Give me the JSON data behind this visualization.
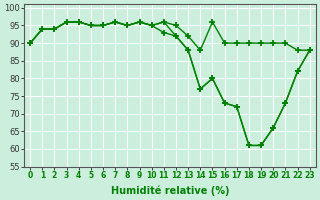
{
  "line1": [
    90,
    94,
    94,
    96,
    96,
    95,
    95,
    96,
    95,
    96,
    95,
    96,
    95,
    92,
    88,
    96,
    90,
    90,
    90,
    90,
    90,
    90,
    88,
    88
  ],
  "line2": [
    90,
    94,
    94,
    96,
    96,
    95,
    95,
    96,
    95,
    96,
    95,
    96,
    92,
    88,
    77,
    80,
    73,
    72,
    61,
    61,
    66,
    73,
    82,
    88
  ],
  "line3": [
    90,
    94,
    94,
    96,
    96,
    95,
    95,
    96,
    95,
    96,
    95,
    93,
    92,
    88,
    77,
    80,
    73,
    72,
    61,
    61,
    66,
    73,
    82,
    88
  ],
  "x": [
    0,
    1,
    2,
    3,
    4,
    5,
    6,
    7,
    8,
    9,
    10,
    11,
    12,
    13,
    14,
    15,
    16,
    17,
    18,
    19,
    20,
    21,
    22,
    23
  ],
  "xlabel": "Humidité relative (%)",
  "ylim": [
    55,
    101
  ],
  "xlim": [
    -0.5,
    23.5
  ],
  "yticks": [
    55,
    60,
    65,
    70,
    75,
    80,
    85,
    90,
    95,
    100
  ],
  "xticks": [
    0,
    1,
    2,
    3,
    4,
    5,
    6,
    7,
    8,
    9,
    10,
    11,
    12,
    13,
    14,
    15,
    16,
    17,
    18,
    19,
    20,
    21,
    22,
    23
  ],
  "line_color": "#008000",
  "bg_color": "#cceedd",
  "grid_color": "#ffffff",
  "marker": "+",
  "linewidth": 1.0,
  "markersize": 5,
  "markeredgewidth": 1.3
}
